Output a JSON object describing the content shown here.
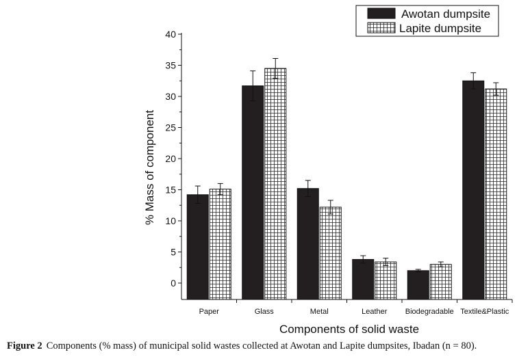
{
  "chart_data": {
    "type": "bar",
    "title": "",
    "xlabel": "Components of solid waste",
    "ylabel": "% Mass of component",
    "ylim": [
      0,
      40
    ],
    "yticks": [
      0,
      5,
      10,
      15,
      20,
      25,
      30,
      35,
      40
    ],
    "categories": [
      "Paper",
      "Glass",
      "Metal",
      "Leather",
      "Biodegradable",
      "Textile&Plastic"
    ],
    "series": [
      {
        "name": "Awotan dumpsite",
        "pattern": "solid",
        "color": "#231f20",
        "values": [
          14.2,
          31.7,
          15.2,
          3.8,
          2.0,
          32.5
        ],
        "errors": [
          1.4,
          2.4,
          1.3,
          0.6,
          0.2,
          1.3
        ]
      },
      {
        "name": "Lapite dumpsite",
        "pattern": "grid",
        "color": "#ffffff",
        "values": [
          15.1,
          34.5,
          12.2,
          3.4,
          3.0,
          31.2
        ],
        "errors": [
          0.9,
          1.6,
          1.1,
          0.6,
          0.4,
          1.0
        ]
      }
    ],
    "legend_position": "top-right",
    "grid": false
  },
  "caption": {
    "label": "Figure 2",
    "text": "Components (% mass) of municipal solid wastes collected at Awotan and Lapite dumpsites, Ibadan (n = 80)."
  }
}
